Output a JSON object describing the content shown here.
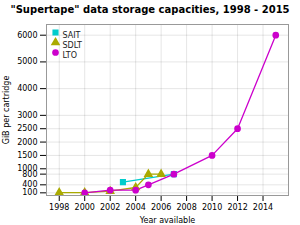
{
  "chart_data": {
    "type": "line",
    "title": "\"Supertape\" data storage capacities, 1998 - 2015",
    "xlabel": "Year available",
    "ylabel": "GiB per cartridge",
    "xlim": [
      1997,
      2016
    ],
    "ylim": [
      0,
      6400
    ],
    "xticks": [
      1998,
      2000,
      2002,
      2004,
      2006,
      2008,
      2010,
      2012,
      2014
    ],
    "yticks": [
      100,
      400,
      800,
      1000,
      1500,
      2000,
      2500,
      3000,
      4000,
      5000,
      6000
    ],
    "series": [
      {
        "name": "SAIT",
        "color": "#00cccc",
        "marker": "square",
        "x": [
          2003,
          2007
        ],
        "values": [
          500,
          800
        ]
      },
      {
        "name": "SDLT",
        "color": "#aaaa00",
        "marker": "triangle",
        "x": [
          1998,
          2000,
          2002,
          2004,
          2005,
          2006
        ],
        "values": [
          110,
          110,
          160,
          300,
          800,
          800
        ]
      },
      {
        "name": "LTO",
        "color": "#cc00cc",
        "marker": "circle",
        "x": [
          2000,
          2002,
          2004,
          2005,
          2007,
          2010,
          2012,
          2015
        ],
        "values": [
          100,
          200,
          200,
          400,
          800,
          1500,
          2500,
          6000
        ]
      }
    ],
    "grid": true,
    "legend": "upper left"
  }
}
